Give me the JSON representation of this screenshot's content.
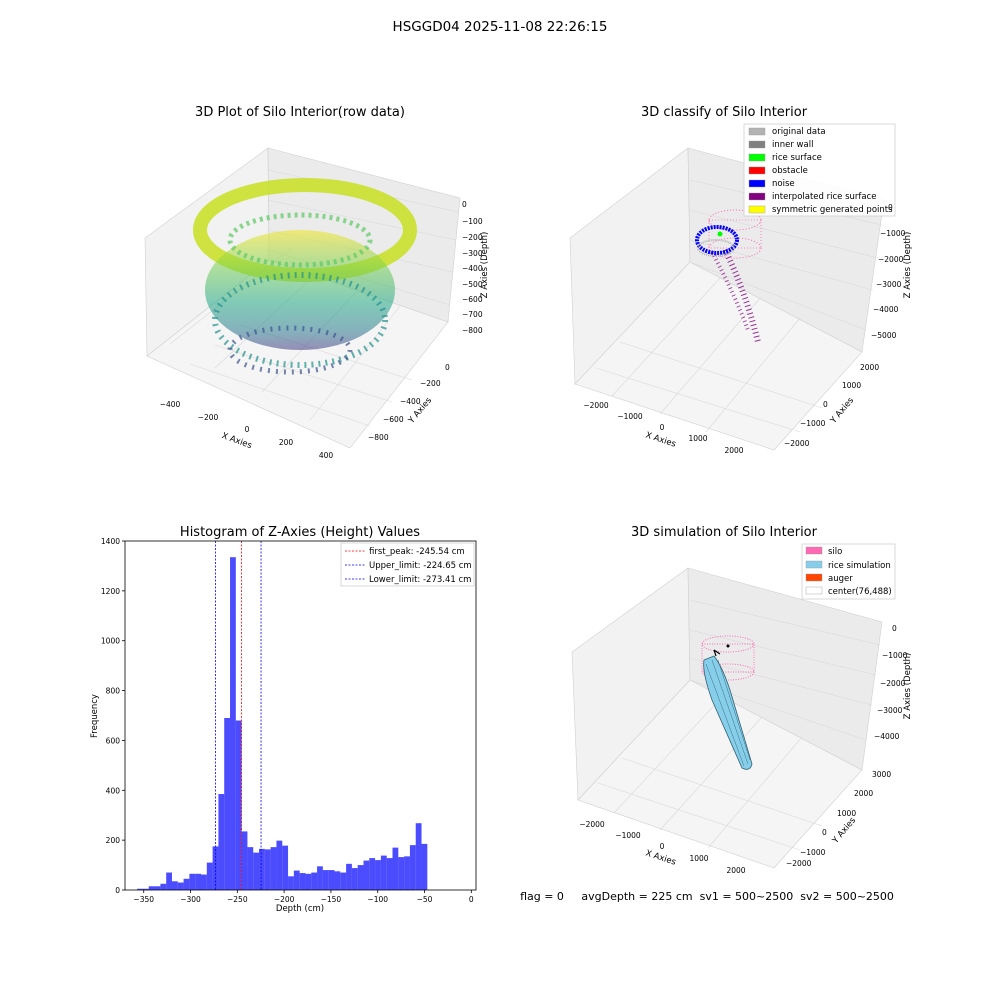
{
  "suptitle": "HSGGD04 2025-11-08 22:26:15",
  "panels": {
    "raw": {
      "title": "3D Plot of Silo Interior(row data)",
      "xlabel": "X Axies",
      "ylabel": "Y Axies",
      "zlabel": "Z Axies (Depth)",
      "xticks": [
        "−400",
        "−200",
        "0",
        "200",
        "400"
      ],
      "yticks": [
        "0",
        "−200",
        "−400",
        "−600",
        "−800"
      ],
      "zticks": [
        "0",
        "−100",
        "−200",
        "−300",
        "−400",
        "−500",
        "−600",
        "−700",
        "−800"
      ]
    },
    "classify": {
      "title": "3D classify of Silo Interior",
      "xlabel": "X Axies",
      "ylabel": "Y Axies",
      "zlabel": "Z Axies (Depth)",
      "xticks": [
        "−2000",
        "−1000",
        "0",
        "1000",
        "2000"
      ],
      "yticks": [
        "2000",
        "1000",
        "0",
        "−1000",
        "−2000"
      ],
      "zticks": [
        "0",
        "−1000",
        "−2000",
        "−3000",
        "−4000",
        "−5000"
      ],
      "legend": [
        {
          "label": "original data",
          "color": "#b3b3b3"
        },
        {
          "label": "inner wall",
          "color": "#808080"
        },
        {
          "label": "rice surface",
          "color": "#00ff00"
        },
        {
          "label": "obstacle",
          "color": "#ff0000"
        },
        {
          "label": "noise",
          "color": "#0000ff"
        },
        {
          "label": "interpolated rice surface",
          "color": "#800080"
        },
        {
          "label": "symmetric generated points",
          "color": "#ffff00"
        }
      ]
    },
    "simulation": {
      "title": "3D simulation of Silo Interior",
      "xlabel": "X Axies",
      "ylabel": "Y Axies",
      "zlabel": "Z Axies (Depth)",
      "xticks": [
        "−2000",
        "−1000",
        "0",
        "1000",
        "2000"
      ],
      "yticks": [
        "3000",
        "2000",
        "1000",
        "0",
        "−1000",
        "−2000"
      ],
      "zticks": [
        "0",
        "−1000",
        "−2000",
        "−3000",
        "−4000"
      ],
      "legend": [
        {
          "label": "silo",
          "color": "#ff69b4"
        },
        {
          "label": "rice simulation",
          "color": "#87ceeb"
        },
        {
          "label": "auger",
          "color": "#ff4500"
        },
        {
          "label": "center(76,488)",
          "color": "#ffffff"
        }
      ]
    }
  },
  "status_text": "flag = 0     avgDepth = 225 cm  sv1 = 500~2500  sv2 = 500~2500",
  "chart_data": {
    "type": "bar",
    "title": "Histogram of Z-Axies (Height) Values",
    "xlabel": "Depth (cm)",
    "ylabel": "Frequency",
    "xlim": [
      -370,
      5
    ],
    "ylim": [
      0,
      1400
    ],
    "bar_color": "#0000ff",
    "bin_width": 6.2,
    "bin_start": -357,
    "values": [
      5,
      5,
      15,
      15,
      25,
      70,
      35,
      30,
      45,
      65,
      65,
      62,
      110,
      175,
      385,
      690,
      1335,
      680,
      235,
      172,
      150,
      165,
      163,
      172,
      198,
      178,
      55,
      78,
      68,
      65,
      70,
      95,
      80,
      80,
      75,
      70,
      105,
      88,
      100,
      118,
      128,
      120,
      138,
      128,
      170,
      132,
      135,
      180,
      268,
      185
    ],
    "xticks": [
      -350,
      -300,
      -250,
      -200,
      -150,
      -100,
      -50,
      0
    ],
    "xtick_labels": [
      "−350",
      "−300",
      "−250",
      "−200",
      "−150",
      "−100",
      "−50",
      "0"
    ],
    "yticks": [
      0,
      200,
      400,
      600,
      800,
      1000,
      1200,
      1400
    ],
    "ytick_labels": [
      "0",
      "200",
      "400",
      "600",
      "800",
      "1000",
      "1200",
      "1400"
    ],
    "vlines": [
      {
        "x": -245.54,
        "color": "#ff0000",
        "label": "first_peak: -245.54 cm"
      },
      {
        "x": -224.65,
        "color": "#0000ff",
        "label": "Upper_limit: -224.65 cm"
      },
      {
        "x": -273.41,
        "color": "#0000ff",
        "label": "Lower_limit: -273.41 cm"
      }
    ],
    "legend_position": "upper right"
  }
}
